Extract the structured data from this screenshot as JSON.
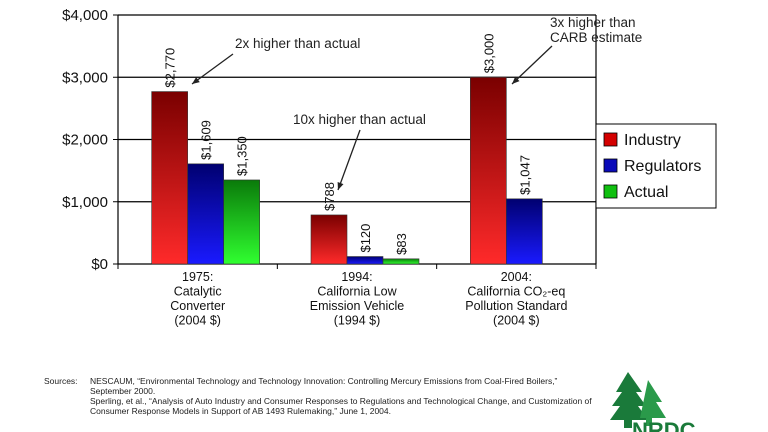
{
  "chart_data": {
    "type": "bar",
    "title": "",
    "xlabel": "",
    "ylabel": "",
    "ylim": [
      0,
      4000
    ],
    "yticks": [
      0,
      1000,
      2000,
      3000,
      4000
    ],
    "ytick_labels": [
      "$0",
      "$1,000",
      "$2,000",
      "$3,000",
      "$4,000"
    ],
    "grid": true,
    "legend_position": "right",
    "categories": [
      [
        "1975:",
        "Catalytic",
        "Converter",
        "(2004 $)"
      ],
      [
        "1994:",
        "California Low",
        "Emission Vehicle",
        "(1994 $)"
      ],
      [
        "2004:",
        "California CO₂-eq",
        "Pollution Standard",
        "(2004 $)"
      ]
    ],
    "series": [
      {
        "name": "Industry",
        "color": "#d40000",
        "values": [
          2770,
          788,
          3000
        ],
        "labels": [
          "$2,770",
          "$788",
          "$3,000"
        ]
      },
      {
        "name": "Regulators",
        "color": "#0a0ab8",
        "values": [
          1609,
          120,
          1047
        ],
        "labels": [
          "$1,609",
          "$120",
          "$1,047"
        ]
      },
      {
        "name": "Actual",
        "color": "#10c010",
        "values": [
          1350,
          83,
          null
        ],
        "labels": [
          "$1,350",
          "$83",
          ""
        ]
      }
    ],
    "annotations": [
      {
        "lines": [
          "2x higher than actual"
        ],
        "category": 0,
        "series": 0
      },
      {
        "lines": [
          "10x higher than actual"
        ],
        "category": 1,
        "series": 0
      },
      {
        "lines": [
          "3x higher than",
          "CARB estimate"
        ],
        "category": 2,
        "series": 0
      }
    ]
  },
  "sources": {
    "heading": "Sources:",
    "entries": [
      "NESCAUM, “Environmental Technology and Technology Innovation: Controlling Mercury Emissions from Coal-Fired Boilers,” September 2000.",
      "Sperling, et al., “Analysis of Auto Industry and Consumer Responses to Regulations and Technological Change, and Customization of Consumer Response Models in Support of AB 1493 Rulemaking,” June 1, 2004."
    ]
  },
  "logo": {
    "text": "NRDC",
    "icon": "tree-logo-icon",
    "color": "#1a7a3a"
  }
}
